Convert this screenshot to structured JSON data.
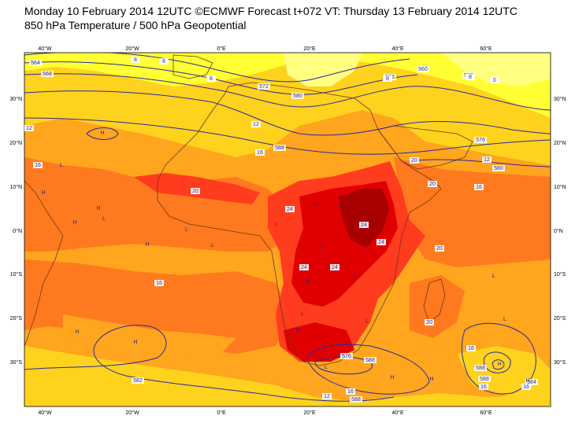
{
  "header": {
    "title": "Monday 10 February 2014 12UTC ©ECMWF Forecast t+072 VT: Thursday 13 February 2014 12UTC",
    "subtitle": "850 hPa Temperature / 500 hPa Geopotential"
  },
  "colors": {
    "band_8": "#ffff33",
    "band_12": "#ffd21e",
    "band_16": "#ffa51e",
    "band_20": "#ff7a1e",
    "band_24": "#ff3c1e",
    "band_28": "#e00000",
    "band_32": "#a80000",
    "contour": "#2a2a9a",
    "coast": "#6b3a1a"
  },
  "axes": {
    "lon_top": [
      "40°W",
      "20°W",
      "0°E",
      "20°E",
      "40°E",
      "60°E"
    ],
    "lon_bottom": [
      "40°W",
      "20°W",
      "0°E",
      "20°E",
      "40°E",
      "60°E"
    ],
    "lat_left": [
      "30°N",
      "20°N",
      "10°N",
      "0°N",
      "10°S",
      "20°S",
      "30°S"
    ],
    "lat_right": [
      "30°N",
      "20°N",
      "10°N",
      "0°N",
      "10°S",
      "20°S",
      "30°S"
    ]
  },
  "contour_labels": [
    "564",
    "568",
    "580",
    "572",
    "588",
    "576",
    "552",
    "560",
    "576",
    "580",
    "582",
    "588",
    "588",
    "576",
    "588",
    "588",
    "584"
  ],
  "temp_labels": [
    "8",
    "8",
    "0",
    "8",
    "8",
    "8",
    "12",
    "12",
    "12",
    "16",
    "16",
    "16",
    "20",
    "20",
    "20",
    "20",
    "20",
    "24",
    "24",
    "24",
    "24",
    "24",
    "16",
    "16",
    "16",
    "16",
    "12",
    "16"
  ],
  "pressure_marks": [
    "H",
    "H",
    "H",
    "L",
    "L",
    "H",
    "H",
    "L",
    "L",
    "L",
    "H",
    "H",
    "L",
    "H",
    "L",
    "L",
    "H",
    "L",
    "H",
    "H",
    "L",
    "H",
    "H",
    "L",
    "L",
    "H",
    "H"
  ]
}
